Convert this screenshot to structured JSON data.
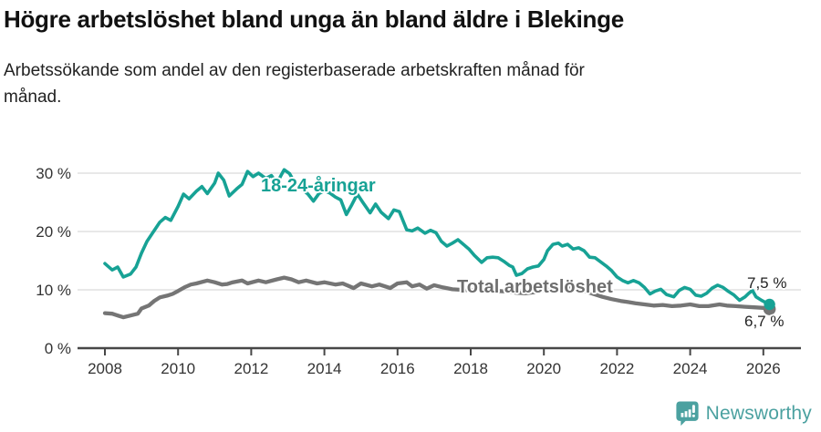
{
  "chart_data": {
    "type": "line",
    "title": "Högre arbetslöshet bland unga än bland äldre i Blekinge",
    "subtitle": "Arbetssökande som andel av den registerbaserade arbetskraften månad för månad.",
    "subtitle_lines": [
      "Arbetssökande som andel av den registerbaserade arbetskraften månad för",
      "månad."
    ],
    "unit": "%",
    "x_range": [
      2007.25,
      2027.0
    ],
    "y_range": [
      0,
      31
    ],
    "grid": "horizontal",
    "legend": "inline-labels",
    "colors": {
      "axis": "#474747",
      "grid": "#d9d9d9",
      "tick_text": "#333333",
      "value_label": "#222222"
    },
    "x_ticks": [
      {
        "value": 2008,
        "label": "2008"
      },
      {
        "value": 2010,
        "label": "2010"
      },
      {
        "value": 2012,
        "label": "2012"
      },
      {
        "value": 2014,
        "label": "2014"
      },
      {
        "value": 2016,
        "label": "2016"
      },
      {
        "value": 2018,
        "label": "2018"
      },
      {
        "value": 2020,
        "label": "2020"
      },
      {
        "value": 2022,
        "label": "2022"
      },
      {
        "value": 2024,
        "label": "2024"
      },
      {
        "value": 2026,
        "label": "2026"
      }
    ],
    "y_ticks": [
      {
        "value": 0,
        "label": "0 %"
      },
      {
        "value": 10,
        "label": "10 %"
      },
      {
        "value": 20,
        "label": "20 %"
      },
      {
        "value": 30,
        "label": "30 %"
      }
    ],
    "series": [
      {
        "id": "youth",
        "name": "18-24-åringar",
        "color": "#17a295",
        "end_label": "7,5 %",
        "end_value": 7.5,
        "points": [
          [
            2008.0,
            14.5
          ],
          [
            2008.2,
            13.4
          ],
          [
            2008.35,
            13.9
          ],
          [
            2008.5,
            12.2
          ],
          [
            2008.7,
            12.7
          ],
          [
            2008.85,
            13.9
          ],
          [
            2009.0,
            16.3
          ],
          [
            2009.15,
            18.3
          ],
          [
            2009.3,
            19.7
          ],
          [
            2009.5,
            21.6
          ],
          [
            2009.65,
            22.4
          ],
          [
            2009.8,
            21.9
          ],
          [
            2010.0,
            24.3
          ],
          [
            2010.15,
            26.4
          ],
          [
            2010.3,
            25.6
          ],
          [
            2010.5,
            26.9
          ],
          [
            2010.65,
            27.7
          ],
          [
            2010.8,
            26.5
          ],
          [
            2011.0,
            28.3
          ],
          [
            2011.1,
            30.0
          ],
          [
            2011.25,
            28.8
          ],
          [
            2011.4,
            26.1
          ],
          [
            2011.6,
            27.3
          ],
          [
            2011.75,
            28.1
          ],
          [
            2011.9,
            30.3
          ],
          [
            2012.05,
            29.4
          ],
          [
            2012.2,
            30.0
          ],
          [
            2012.4,
            29.1
          ],
          [
            2012.55,
            29.6
          ],
          [
            2012.7,
            28.3
          ],
          [
            2012.9,
            30.6
          ],
          [
            2013.05,
            29.9
          ],
          [
            2013.25,
            27.7
          ],
          [
            2013.4,
            27.2
          ],
          [
            2013.55,
            26.4
          ],
          [
            2013.7,
            25.2
          ],
          [
            2013.85,
            26.5
          ],
          [
            2014.0,
            27.0
          ],
          [
            2014.15,
            26.6
          ],
          [
            2014.3,
            25.9
          ],
          [
            2014.45,
            25.4
          ],
          [
            2014.6,
            22.9
          ],
          [
            2014.75,
            24.6
          ],
          [
            2014.9,
            26.4
          ],
          [
            2015.05,
            25.0
          ],
          [
            2015.25,
            23.2
          ],
          [
            2015.4,
            24.7
          ],
          [
            2015.55,
            23.3
          ],
          [
            2015.75,
            22.2
          ],
          [
            2015.9,
            23.7
          ],
          [
            2016.05,
            23.4
          ],
          [
            2016.25,
            20.3
          ],
          [
            2016.4,
            20.1
          ],
          [
            2016.55,
            20.6
          ],
          [
            2016.75,
            19.7
          ],
          [
            2016.9,
            20.2
          ],
          [
            2017.05,
            19.8
          ],
          [
            2017.2,
            18.3
          ],
          [
            2017.35,
            17.5
          ],
          [
            2017.5,
            18.0
          ],
          [
            2017.65,
            18.6
          ],
          [
            2017.8,
            17.8
          ],
          [
            2017.95,
            17.0
          ],
          [
            2018.1,
            15.9
          ],
          [
            2018.3,
            14.7
          ],
          [
            2018.45,
            15.5
          ],
          [
            2018.6,
            15.6
          ],
          [
            2018.75,
            15.5
          ],
          [
            2018.9,
            14.9
          ],
          [
            2019.05,
            14.2
          ],
          [
            2019.15,
            13.9
          ],
          [
            2019.25,
            12.5
          ],
          [
            2019.4,
            12.8
          ],
          [
            2019.55,
            13.6
          ],
          [
            2019.7,
            13.9
          ],
          [
            2019.85,
            14.1
          ],
          [
            2020.0,
            15.2
          ],
          [
            2020.1,
            16.7
          ],
          [
            2020.25,
            17.8
          ],
          [
            2020.4,
            18.0
          ],
          [
            2020.5,
            17.5
          ],
          [
            2020.65,
            17.8
          ],
          [
            2020.8,
            17.0
          ],
          [
            2020.95,
            17.2
          ],
          [
            2021.1,
            16.7
          ],
          [
            2021.25,
            15.6
          ],
          [
            2021.4,
            15.5
          ],
          [
            2021.55,
            14.8
          ],
          [
            2021.7,
            14.1
          ],
          [
            2021.85,
            13.3
          ],
          [
            2022.0,
            12.2
          ],
          [
            2022.15,
            11.6
          ],
          [
            2022.3,
            11.2
          ],
          [
            2022.45,
            11.6
          ],
          [
            2022.6,
            11.2
          ],
          [
            2022.75,
            10.4
          ],
          [
            2022.9,
            9.3
          ],
          [
            2023.05,
            9.8
          ],
          [
            2023.2,
            10.1
          ],
          [
            2023.35,
            9.2
          ],
          [
            2023.55,
            8.8
          ],
          [
            2023.7,
            9.9
          ],
          [
            2023.85,
            10.4
          ],
          [
            2024.0,
            10.1
          ],
          [
            2024.15,
            9.1
          ],
          [
            2024.3,
            8.9
          ],
          [
            2024.45,
            9.4
          ],
          [
            2024.6,
            10.3
          ],
          [
            2024.75,
            10.8
          ],
          [
            2024.9,
            10.4
          ],
          [
            2025.05,
            9.7
          ],
          [
            2025.2,
            9.1
          ],
          [
            2025.35,
            8.2
          ],
          [
            2025.5,
            8.8
          ],
          [
            2025.6,
            9.4
          ],
          [
            2025.7,
            9.9
          ],
          [
            2025.8,
            8.8
          ],
          [
            2025.95,
            8.2
          ],
          [
            2026.1,
            7.7
          ],
          [
            2026.17,
            7.5
          ]
        ]
      },
      {
        "id": "total",
        "name": "Total arbetslöshet",
        "color": "#757575",
        "label_color": "#6e6e6e",
        "end_label": "6,7 %",
        "end_value": 6.7,
        "points": [
          [
            2008.0,
            6.0
          ],
          [
            2008.2,
            5.9
          ],
          [
            2008.35,
            5.6
          ],
          [
            2008.5,
            5.3
          ],
          [
            2008.7,
            5.6
          ],
          [
            2008.9,
            5.9
          ],
          [
            2009.0,
            6.8
          ],
          [
            2009.2,
            7.3
          ],
          [
            2009.35,
            8.1
          ],
          [
            2009.5,
            8.7
          ],
          [
            2009.7,
            9.0
          ],
          [
            2009.85,
            9.3
          ],
          [
            2010.0,
            9.8
          ],
          [
            2010.2,
            10.5
          ],
          [
            2010.35,
            10.9
          ],
          [
            2010.5,
            11.1
          ],
          [
            2010.8,
            11.6
          ],
          [
            2011.0,
            11.3
          ],
          [
            2011.2,
            10.9
          ],
          [
            2011.35,
            11.0
          ],
          [
            2011.5,
            11.3
          ],
          [
            2011.75,
            11.6
          ],
          [
            2011.9,
            11.1
          ],
          [
            2012.2,
            11.6
          ],
          [
            2012.4,
            11.3
          ],
          [
            2012.7,
            11.8
          ],
          [
            2012.9,
            12.1
          ],
          [
            2013.1,
            11.8
          ],
          [
            2013.3,
            11.3
          ],
          [
            2013.5,
            11.6
          ],
          [
            2013.8,
            11.1
          ],
          [
            2014.0,
            11.3
          ],
          [
            2014.3,
            10.9
          ],
          [
            2014.5,
            11.1
          ],
          [
            2014.8,
            10.3
          ],
          [
            2015.0,
            11.1
          ],
          [
            2015.3,
            10.6
          ],
          [
            2015.5,
            10.9
          ],
          [
            2015.8,
            10.3
          ],
          [
            2016.0,
            11.1
          ],
          [
            2016.25,
            11.3
          ],
          [
            2016.4,
            10.6
          ],
          [
            2016.6,
            10.9
          ],
          [
            2016.8,
            10.2
          ],
          [
            2017.0,
            10.8
          ],
          [
            2017.25,
            10.4
          ],
          [
            2017.5,
            10.1
          ],
          [
            2017.75,
            10.0
          ],
          [
            2018.0,
            9.9
          ],
          [
            2018.25,
            10.2
          ],
          [
            2018.5,
            10.0
          ],
          [
            2018.75,
            9.8
          ],
          [
            2019.0,
            9.7
          ],
          [
            2019.25,
            9.5
          ],
          [
            2019.5,
            9.4
          ],
          [
            2019.75,
            9.6
          ],
          [
            2020.0,
            9.9
          ],
          [
            2020.25,
            10.5
          ],
          [
            2020.45,
            10.8
          ],
          [
            2020.7,
            10.5
          ],
          [
            2021.0,
            10.0
          ],
          [
            2021.3,
            9.4
          ],
          [
            2021.6,
            8.8
          ],
          [
            2021.85,
            8.4
          ],
          [
            2022.1,
            8.1
          ],
          [
            2022.3,
            7.9
          ],
          [
            2022.5,
            7.7
          ],
          [
            2022.75,
            7.5
          ],
          [
            2023.0,
            7.3
          ],
          [
            2023.25,
            7.4
          ],
          [
            2023.5,
            7.2
          ],
          [
            2023.75,
            7.3
          ],
          [
            2024.0,
            7.5
          ],
          [
            2024.25,
            7.2
          ],
          [
            2024.5,
            7.2
          ],
          [
            2024.8,
            7.5
          ],
          [
            2025.0,
            7.3
          ],
          [
            2025.25,
            7.2
          ],
          [
            2025.5,
            7.1
          ],
          [
            2025.75,
            7.0
          ],
          [
            2026.0,
            6.9
          ],
          [
            2026.17,
            6.7
          ]
        ]
      }
    ]
  },
  "footer": {
    "brand": "Newsworthy",
    "brand_color": "#4ba1a0"
  }
}
